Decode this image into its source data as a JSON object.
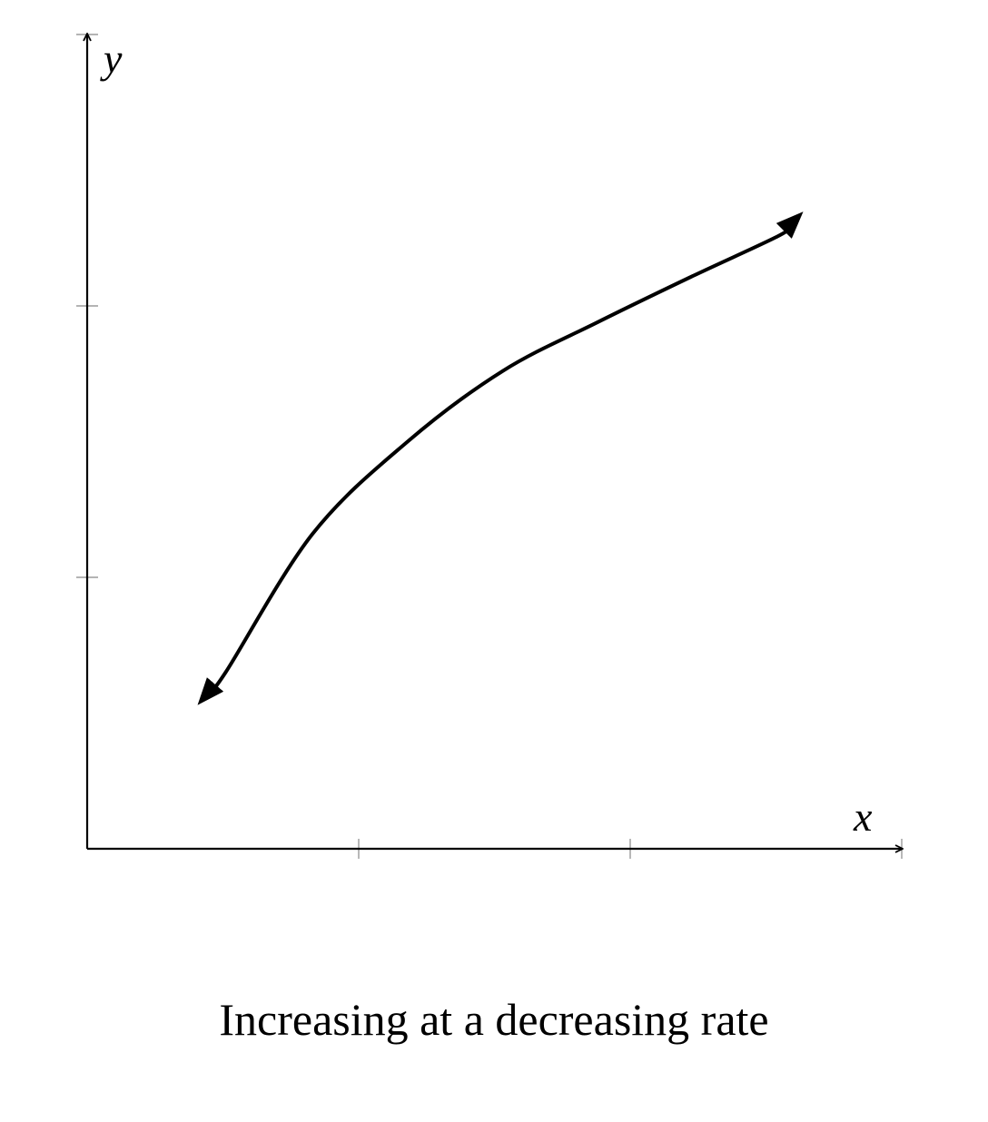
{
  "chart_data": {
    "type": "line",
    "title": "Increasing at a decreasing rate",
    "xlabel": "x",
    "ylabel": "y",
    "xlim": [
      0,
      3
    ],
    "ylim": [
      0,
      3
    ],
    "x_ticks": [
      1,
      2,
      3
    ],
    "y_ticks": [
      1,
      2,
      3
    ],
    "grid": false,
    "series": [
      {
        "arrows": "both-ends",
        "color": "#000000",
        "points": [
          [
            0.45,
            0.58
          ],
          [
            0.51,
            0.65
          ],
          [
            0.83,
            1.16
          ],
          [
            1.18,
            1.5
          ],
          [
            1.53,
            1.76
          ],
          [
            1.88,
            1.94
          ],
          [
            2.23,
            2.11
          ],
          [
            2.55,
            2.26
          ],
          [
            2.59,
            2.3
          ]
        ]
      }
    ]
  }
}
